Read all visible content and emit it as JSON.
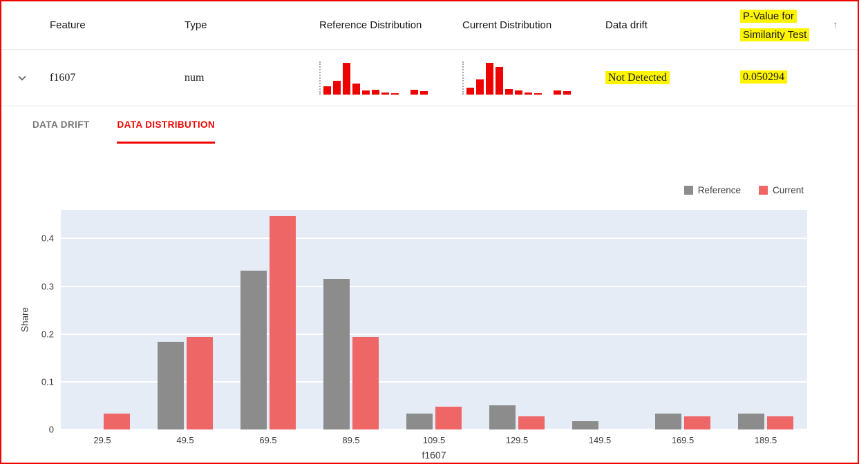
{
  "table": {
    "headers": {
      "feature": "Feature",
      "type": "Type",
      "reference": "Reference Distribution",
      "current": "Current Distribution",
      "drift": "Data drift",
      "pvalue": "P-Value for Similarity Test"
    },
    "sort_icon": "↑",
    "row": {
      "feature": "f1607",
      "type": "num",
      "drift": "Not Detected",
      "pvalue": "0.050294",
      "reference_spark": [
        0.26,
        0.43,
        1.0,
        0.35,
        0.13,
        0.15,
        0.07,
        0.04,
        0,
        0.15,
        0.11
      ],
      "current_spark": [
        0.22,
        0.48,
        1.0,
        0.87,
        0.17,
        0.13,
        0.07,
        0.04,
        0,
        0.13,
        0.1
      ]
    }
  },
  "tabs": [
    {
      "label": "DATA DRIFT",
      "active": false
    },
    {
      "label": "DATA DISTRIBUTION",
      "active": true
    }
  ],
  "chart_data": {
    "type": "bar",
    "title": "",
    "categories": [
      "29.5",
      "49.5",
      "69.5",
      "89.5",
      "109.5",
      "129.5",
      "149.5",
      "169.5",
      "189.5"
    ],
    "series": [
      {
        "name": "Reference",
        "color": "#8c8c8c",
        "values": [
          0,
          0.184,
          0.333,
          0.316,
          0.034,
          0.05,
          0.017,
          0.034,
          0.034
        ]
      },
      {
        "name": "Current",
        "color": "#ee6666",
        "values": [
          0.034,
          0.194,
          0.447,
          0.194,
          0.048,
          0.028,
          0,
          0.028,
          0.028
        ]
      }
    ],
    "xlabel": "f1607",
    "ylabel": "Share",
    "ylim": [
      0,
      0.46
    ],
    "yticks": [
      0,
      0.1,
      0.2,
      0.3,
      0.4
    ],
    "grid": true,
    "legend_position": "top-right",
    "plot_bg": "#e5ecf6"
  },
  "colors": {
    "accent_red": "#ed0400",
    "highlight_yellow": "#fdf400",
    "reference_gray": "#8c8c8c",
    "current_red": "#ee6666",
    "histogram_red": "#ed0400",
    "plot_background": "#e5ecf6"
  }
}
